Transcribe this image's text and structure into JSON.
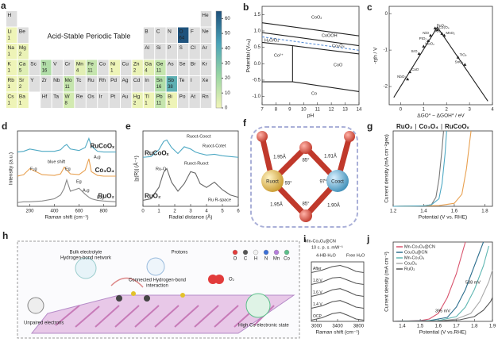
{
  "figure": {
    "a": {
      "label": "a",
      "title": "Acid-Stable Periodic Table",
      "elements": [
        "H",
        "He",
        "Li",
        "Be",
        "B",
        "C",
        "N",
        "O",
        "F",
        "Ne",
        "Na",
        "Mg",
        "Al",
        "Si",
        "P",
        "S",
        "Cl",
        "Ar",
        "K",
        "Ca",
        "Sc",
        "Ti",
        "V",
        "Cr",
        "Mn",
        "Fe",
        "Co",
        "Ni",
        "Cu",
        "Zn",
        "Ga",
        "Ge",
        "As",
        "Se",
        "Br",
        "Kr",
        "Rb",
        "Sr",
        "Y",
        "Zr",
        "Nb",
        "Mo",
        "Tc",
        "Ru",
        "Rh",
        "Pd",
        "Ag",
        "Cd",
        "In",
        "Sn",
        "Sb",
        "Te",
        "I",
        "Xe",
        "Cs",
        "Ba",
        "Hf",
        "Ta",
        "W",
        "Re",
        "Os",
        "Ir",
        "Pt",
        "Au",
        "Hg",
        "Tl",
        "Pb",
        "Bi",
        "Po",
        "At",
        "Rn"
      ],
      "counts": [
        null,
        null,
        1,
        null,
        null,
        null,
        null,
        64,
        null,
        null,
        1,
        2,
        null,
        null,
        null,
        null,
        null,
        null,
        1,
        5,
        null,
        16,
        null,
        null,
        4,
        11,
        null,
        1,
        null,
        2,
        4,
        11,
        null,
        null,
        null,
        null,
        1,
        2,
        null,
        null,
        null,
        11,
        null,
        null,
        null,
        null,
        null,
        null,
        null,
        16,
        38,
        null,
        null,
        null,
        1,
        1,
        null,
        null,
        8,
        null,
        null,
        null,
        null,
        null,
        2,
        1,
        11,
        1,
        null,
        null,
        null
      ],
      "colorbar_lim": [
        0,
        65
      ],
      "colorbar_ticks": [
        0,
        10,
        20,
        30,
        40,
        50,
        60
      ],
      "colormap": [
        "#f2f5b8",
        "#9ad6a3",
        "#4aa3b8",
        "#1d4f7a"
      ],
      "empty_color": "#dedede"
    },
    "f": {
      "label": "f",
      "atoms": [
        "Ruoct",
        "Cooct"
      ],
      "bonds": [
        "1.95Å",
        "1.91Å",
        "1.95Å",
        "1.90Å"
      ],
      "angles": [
        "85°",
        "97°",
        "93°",
        "85°"
      ]
    },
    "h": {
      "label": "h",
      "texts": [
        "Bulk electrolyte",
        "Hydrogen-bond network",
        "Protons",
        "Connected Hydrogen-bond",
        "interaction",
        "O₂",
        "Unpaired electrons",
        "High Co electronic state"
      ],
      "legend": [
        {
          "name": "O",
          "color": "#e23b3b"
        },
        {
          "name": "C",
          "color": "#555555"
        },
        {
          "name": "H",
          "color": "#f2f2f2"
        },
        {
          "name": "N",
          "color": "#3b6fd8"
        },
        {
          "name": "Mn",
          "color": "#b57edc"
        },
        {
          "name": "Co",
          "color": "#5bbf8a"
        }
      ]
    }
  },
  "chart_data": [
    {
      "type": "line",
      "panel_label": "b",
      "xlabel": "pH",
      "ylabel": "Potential (Vᵣₕₑ)",
      "xlim": [
        7,
        14
      ],
      "ylim": [
        -1.25,
        1.75
      ],
      "xticks": [
        7,
        8,
        9,
        10,
        11,
        12,
        13,
        14
      ],
      "yticks": [
        {
          "value": -1,
          "label": "-1.0"
        },
        {
          "value": -0.5,
          "label": "-0.5"
        },
        {
          "value": 0,
          "label": "0.0"
        },
        {
          "value": 0.5,
          "label": "0.5"
        },
        {
          "value": 1,
          "label": "1.0"
        },
        {
          "value": 1.5,
          "label": "1.5"
        }
      ],
      "series": [
        {
          "color": "#222222",
          "x": [
            7,
            14
          ],
          "values": [
            1.25,
            0.85
          ]
        },
        {
          "color": "#222222",
          "x": [
            7,
            14
          ],
          "values": [
            0.95,
            0.55
          ]
        },
        {
          "color": "#5b8fd6",
          "dashed": true,
          "x": [
            7,
            14
          ],
          "values": [
            0.82,
            0.41
          ]
        },
        {
          "color": "#222222",
          "x": [
            7,
            9.2,
            14
          ],
          "values": [
            0.65,
            0.55,
            0.3
          ]
        },
        {
          "color": "#222222",
          "x": [
            9.2,
            9.2
          ],
          "values": [
            0.55,
            -0.55
          ]
        },
        {
          "color": "#222222",
          "x": [
            7,
            9.2,
            14
          ],
          "values": [
            -0.55,
            -0.55,
            -0.85
          ]
        }
      ],
      "annotations": [
        "CoO₂",
        "CoOOH",
        "H₂O/O₂",
        "Co₃O₄",
        "Co²⁺",
        "CoO",
        "Co"
      ]
    },
    {
      "type": "scatter",
      "panel_label": "c",
      "xlabel": "ΔGO* − ΔGOH* / eV",
      "ylabel": "-ηth / V",
      "xlim": [
        -0.5,
        4
      ],
      "ylim": [
        -2.5,
        0.2
      ],
      "xticks": [
        0,
        1,
        2,
        3,
        4
      ],
      "yticks": [
        -2,
        -1,
        0
      ],
      "series": [
        {
          "color": "#222222",
          "x": [
            -0.3,
            1.6,
            3.8
          ],
          "values": [
            -2.3,
            -0.37,
            -2.4
          ]
        }
      ],
      "points": {
        "color": "#222222",
        "x": [
          1.6,
          1.3,
          1.5,
          1.8,
          1.9,
          1.2,
          1.0,
          2.8,
          2.5,
          0.8,
          0.4,
          0.3
        ],
        "values": [
          -0.45,
          -0.6,
          -0.4,
          -0.55,
          -0.6,
          -0.75,
          -0.9,
          -1.4,
          -1.2,
          -1.1,
          -1.6,
          -1.8
        ],
        "labels": [
          "Co₃O₄",
          "NiO",
          "RuO₂",
          "IrO₂",
          "MnO₂",
          "PtO₂",
          "MoO₂",
          "SnO₂",
          "TiO₂",
          "SrO",
          "CaO",
          "NbO₂"
        ]
      }
    },
    {
      "type": "line",
      "panel_label": "d",
      "xlabel": "Raman shift (cm⁻¹)",
      "ylabel": "Intensity (a.u.)",
      "legend": "right",
      "xlim": [
        100,
        900
      ],
      "ylim": [
        0,
        10
      ],
      "xticks": [
        200,
        400,
        600,
        800
      ],
      "series": [
        {
          "name": "RuCoOₓ",
          "color": "#4fa9c4",
          "x": [
            100,
            150,
            200,
            300,
            400,
            450,
            480,
            500,
            530,
            600,
            650,
            680,
            700,
            750,
            800,
            900
          ],
          "values": [
            7.2,
            7.3,
            7.6,
            7.3,
            7.3,
            7.5,
            8.0,
            8.2,
            7.6,
            7.4,
            7.8,
            9.0,
            8.0,
            7.3,
            7.2,
            7.2
          ]
        },
        {
          "name": "Co₃O₄",
          "color": "#e8a050",
          "x": [
            100,
            150,
            200,
            300,
            400,
            450,
            480,
            500,
            530,
            600,
            650,
            680,
            700,
            750,
            800,
            900
          ],
          "values": [
            4.0,
            4.2,
            5.0,
            4.2,
            4.1,
            4.3,
            5.2,
            4.8,
            4.3,
            4.2,
            4.8,
            6.3,
            4.6,
            4.1,
            4.0,
            4.0
          ]
        },
        {
          "name": "RuO₂",
          "color": "#888888",
          "x": [
            100,
            150,
            200,
            300,
            400,
            450,
            480,
            500,
            530,
            600,
            650,
            680,
            700,
            750,
            800,
            900
          ],
          "values": [
            0.5,
            0.6,
            0.6,
            0.7,
            1.0,
            1.5,
            2.4,
            3.5,
            2.0,
            2.4,
            1.6,
            1.2,
            1.0,
            0.8,
            0.7,
            0.6
          ]
        }
      ],
      "annotations": [
        "blue shift",
        "F₂g",
        "Eg",
        "A₁g",
        "Eg",
        "A₁g",
        "B₂g"
      ]
    },
    {
      "type": "line",
      "panel_label": "e",
      "xlabel": "Radial distance (Å)",
      "ylabel": "|χ(R)| (Å⁻⁴)",
      "legend": "left",
      "xlim": [
        0,
        6
      ],
      "ylim": [
        0,
        10
      ],
      "xticks": [
        0,
        1,
        2,
        3,
        4,
        5,
        6
      ],
      "series": [
        {
          "name": "RuCoOₓ",
          "color": "#4fa9c4",
          "x": [
            0,
            0.5,
            1,
            1.3,
            1.5,
            1.8,
            2.2,
            2.6,
            3,
            3.3,
            3.6,
            4,
            4.5,
            5,
            5.5,
            6
          ],
          "values": [
            6.5,
            6.6,
            7.5,
            8.6,
            8.8,
            7.8,
            7.0,
            7.9,
            7.6,
            7.2,
            7.0,
            6.8,
            6.9,
            6.7,
            6.6,
            6.5
          ]
        },
        {
          "name": "RuO₂",
          "color": "#666666",
          "x": [
            0,
            0.5,
            1,
            1.3,
            1.5,
            1.8,
            2.2,
            2.6,
            3,
            3.3,
            3.6,
            4,
            4.5,
            5,
            5.5,
            6
          ],
          "values": [
            0.8,
            1.0,
            2.5,
            4.5,
            5.0,
            3.2,
            2.0,
            3.0,
            4.6,
            4.4,
            3.0,
            2.5,
            3.2,
            2.2,
            1.5,
            1.2
          ]
        }
      ],
      "annotations": [
        "Ruoct-Cooct",
        "Ruoct-Cotet",
        "Ru-O",
        "Ruoct-Ruoct",
        "Ru R-space"
      ]
    },
    {
      "type": "line",
      "panel_label": "g",
      "xlabel": "Potential (V vs. RHE)",
      "ylabel": "Current density (mA cm⁻²geo)",
      "legend": "top",
      "legend_separator": "|",
      "xlim": [
        1.2,
        1.85
      ],
      "ylim": [
        0,
        50
      ],
      "xticks": [
        1.2,
        1.4,
        1.6,
        1.8
      ],
      "series": [
        {
          "name": "RuO₂",
          "color": "#777777",
          "x": [
            1.2,
            1.4,
            1.45,
            1.48,
            1.5,
            1.52,
            1.53
          ],
          "values": [
            0,
            0.3,
            1,
            6,
            18,
            38,
            50
          ]
        },
        {
          "name": "Co₃O₄",
          "color": "#e8a050",
          "x": [
            1.2,
            1.5,
            1.6,
            1.65,
            1.68,
            1.7,
            1.71
          ],
          "values": [
            0,
            0.5,
            2,
            8,
            25,
            42,
            50
          ]
        },
        {
          "name": "RuCoOₓ",
          "color": "#4fa9c4",
          "x": [
            1.2,
            1.4,
            1.45,
            1.5,
            1.52,
            1.54,
            1.55
          ],
          "values": [
            0,
            0.3,
            1,
            5,
            15,
            35,
            50
          ]
        }
      ]
    },
    {
      "type": "line",
      "panel_label": "i",
      "xlabel": "Raman shift (cm⁻¹)",
      "legend": "left",
      "xlim": [
        2900,
        3900
      ],
      "ylim": [
        0,
        10
      ],
      "xticks": [
        3000,
        3400,
        3800
      ],
      "series": [
        {
          "name": "After",
          "color": "#555555",
          "x": [
            2900,
            3100,
            3300,
            3450,
            3600,
            3750,
            3900
          ],
          "values": [
            8.2,
            8.6,
            9.2,
            9.4,
            9.0,
            8.4,
            8.2
          ]
        },
        {
          "name": "1.8 V",
          "color": "#555555",
          "x": [
            2900,
            3100,
            3300,
            3450,
            3600,
            3750,
            3900
          ],
          "values": [
            6.2,
            6.6,
            7.3,
            7.4,
            6.9,
            6.4,
            6.2
          ]
        },
        {
          "name": "1.6 V",
          "color": "#555555",
          "x": [
            2900,
            3100,
            3300,
            3450,
            3600,
            3750,
            3900
          ],
          "values": [
            4.2,
            4.6,
            5.3,
            5.5,
            5.0,
            4.4,
            4.2
          ]
        },
        {
          "name": "1.4 V",
          "color": "#555555",
          "x": [
            2900,
            3100,
            3300,
            3450,
            3600,
            3750,
            3900
          ],
          "values": [
            2.2,
            2.6,
            3.3,
            3.5,
            3.0,
            2.4,
            2.2
          ]
        },
        {
          "name": "OCP",
          "color": "#555555",
          "x": [
            2900,
            3100,
            3300,
            3450,
            3600,
            3750,
            3900
          ],
          "values": [
            0.2,
            0.6,
            1.3,
            1.5,
            1.0,
            0.4,
            0.2
          ]
        }
      ],
      "annotations": [
        "Mn-Co₃O₄@CN",
        "10 c. p. s. mW⁻¹",
        "4-HB·H₂O",
        "Free H₂O"
      ]
    },
    {
      "type": "line",
      "panel_label": "j",
      "xlabel": "Potential (V vs.RHE)",
      "ylabel": "Current density (mA cm⁻²)",
      "legend": "top-left",
      "xlim": [
        1.35,
        1.9
      ],
      "ylim": [
        0,
        100
      ],
      "xticks": [
        1.4,
        1.5,
        1.6,
        1.7,
        1.8,
        1.9
      ],
      "series": [
        {
          "name": "Mn-Co₃O₄@CN",
          "color": "#d9546e",
          "x": [
            1.35,
            1.5,
            1.55,
            1.6,
            1.65,
            1.7,
            1.75
          ],
          "values": [
            0,
            1,
            3,
            10,
            30,
            60,
            100
          ]
        },
        {
          "name": "Co₃O₄@CN",
          "color": "#2e6f8e",
          "x": [
            1.35,
            1.55,
            1.65,
            1.7,
            1.75,
            1.8,
            1.85
          ],
          "values": [
            0,
            1,
            5,
            18,
            40,
            70,
            100
          ]
        },
        {
          "name": "Mn-Co₃O₄",
          "color": "#5fb7b2",
          "x": [
            1.35,
            1.6,
            1.7,
            1.75,
            1.8,
            1.85,
            1.88
          ],
          "values": [
            0,
            1,
            6,
            18,
            40,
            70,
            95
          ]
        },
        {
          "name": "Co₃O₄",
          "color": "#aaaaaa",
          "x": [
            1.35,
            1.6,
            1.7,
            1.78,
            1.83,
            1.88,
            1.9
          ],
          "values": [
            0,
            0.5,
            3,
            10,
            25,
            50,
            65
          ]
        },
        {
          "name": "RuO₂",
          "color": "#555555",
          "x": [
            1.35,
            1.6,
            1.72,
            1.8,
            1.85,
            1.89,
            1.9
          ],
          "values": [
            0,
            0.5,
            2,
            6,
            14,
            25,
            30
          ]
        }
      ],
      "annotations": [
        "538 mV",
        "395 mV"
      ]
    }
  ]
}
